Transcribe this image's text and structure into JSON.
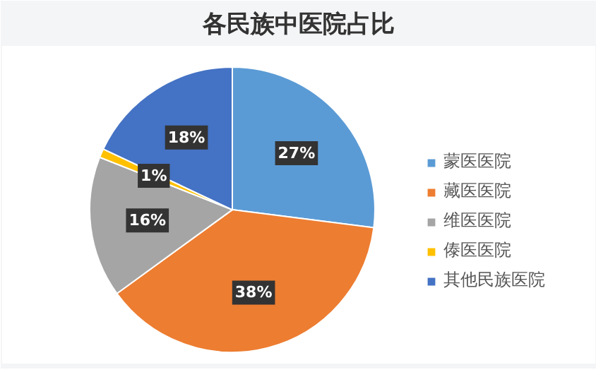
{
  "chart_data": {
    "type": "pie",
    "title": "各民族中医院占比",
    "categories": [
      "蒙医医院",
      "藏医医院",
      "维医医院",
      "傣医医院",
      "其他民族医院"
    ],
    "values": [
      27,
      38,
      16,
      1,
      18
    ],
    "value_labels": [
      "27%",
      "38%",
      "16%",
      "1%",
      "18%"
    ],
    "colors": [
      "#5b9bd5",
      "#ed7d31",
      "#a5a5a5",
      "#ffc000",
      "#4472c4"
    ],
    "legend": "right"
  }
}
